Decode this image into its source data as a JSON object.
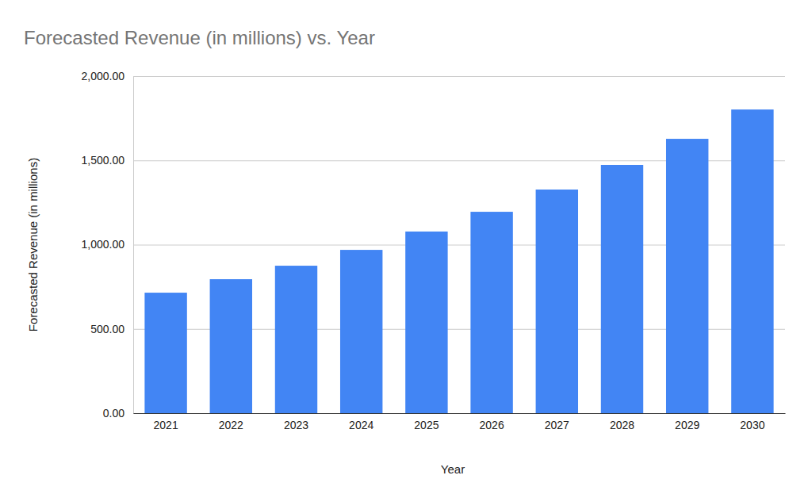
{
  "chart_data": {
    "type": "bar",
    "title": "Forecasted Revenue (in millions) vs. Year",
    "x_label": "Year",
    "y_label": "Forecasted Revenue (in millions)",
    "categories": [
      "2021",
      "2022",
      "2023",
      "2024",
      "2025",
      "2026",
      "2027",
      "2028",
      "2029",
      "2030"
    ],
    "values": [
      715,
      795,
      875,
      969,
      1078,
      1195,
      1327,
      1473,
      1628,
      1802
    ],
    "color": "#4285f4",
    "ylim": [
      0,
      2000
    ],
    "yticks": [
      {
        "value": 0,
        "label": "0.00"
      },
      {
        "value": 500,
        "label": "500.00"
      },
      {
        "value": 1000,
        "label": "1,000.00"
      },
      {
        "value": 1500,
        "label": "1,500.00"
      },
      {
        "value": 2000,
        "label": "2,000.00"
      }
    ],
    "grid": true
  }
}
